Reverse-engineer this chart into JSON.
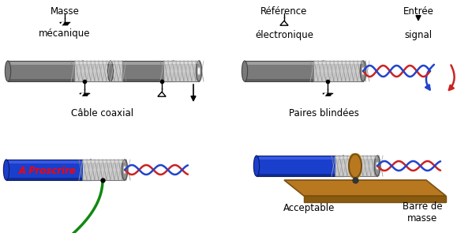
{
  "bg_color": "#ffffff",
  "labels": {
    "masse": "Masse",
    "mecanique": "mécanique",
    "reference": "Référence",
    "electronique": "électronique",
    "entree": "Entrée",
    "signal": "signal",
    "cable_coaxial": "Câble coaxial",
    "paires_blindees": "Paires blindées",
    "a_proscrire": "A Proscrire",
    "acceptable": "Acceptable",
    "barre_de_masse": "Barre de\nmasse"
  },
  "cable_gray_body": "#7a7a7a",
  "cable_gray_light": "#b0b0b0",
  "cable_gray_dark": "#444444",
  "cable_gray_top": "#aaaaaa",
  "braid_bg": "#cccccc",
  "braid_line": "#999999",
  "blue_cable": "#1a3fcc",
  "blue_cable_light": "#4466ee",
  "gold_color": "#b87820",
  "gold_light": "#d4a040",
  "red_color": "#cc2222",
  "blue_wire": "#2244cc",
  "green_wire": "#118811"
}
